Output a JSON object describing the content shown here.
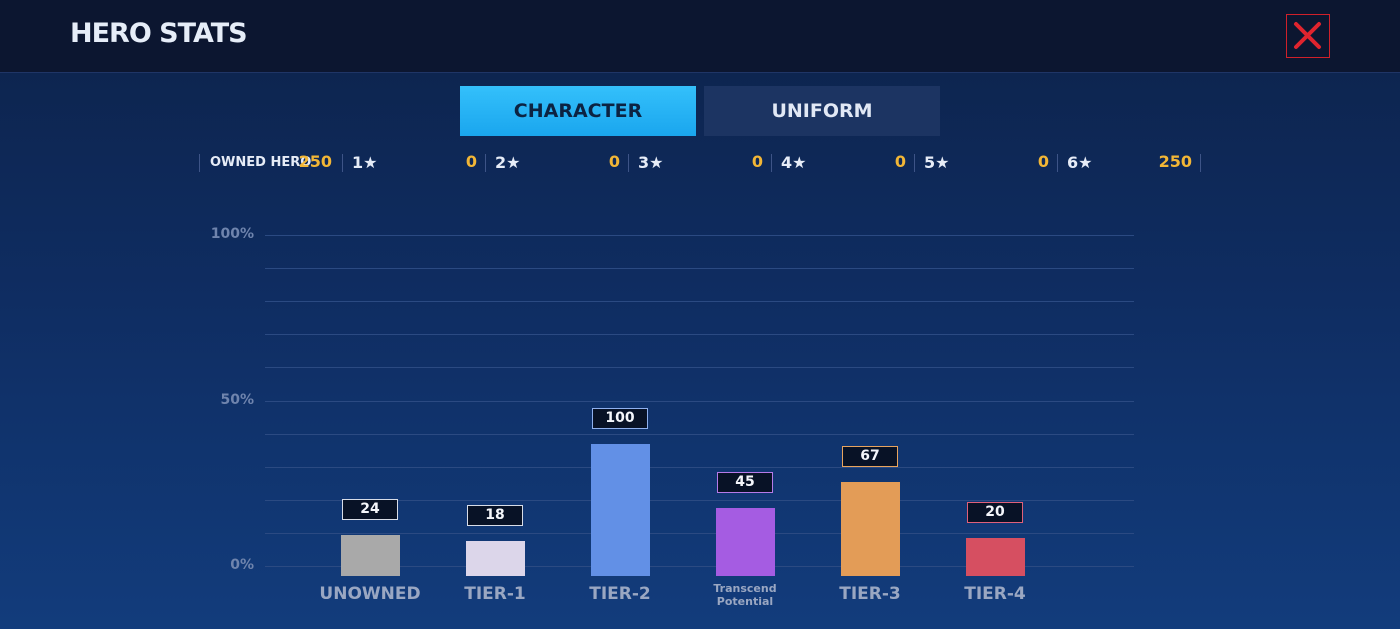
{
  "header": {
    "title": "HERO STATS"
  },
  "tabs": [
    "CHARACTER",
    "UNIFORM"
  ],
  "summary": {
    "label": "OWNED HERO",
    "value": 250,
    "stars": [
      {
        "label": "1★",
        "value": 0
      },
      {
        "label": "2★",
        "value": 0
      },
      {
        "label": "3★",
        "value": 0
      },
      {
        "label": "4★",
        "value": 0
      },
      {
        "label": "5★",
        "value": 0
      },
      {
        "label": "6★",
        "value": 250
      }
    ]
  },
  "chart_data": {
    "type": "bar",
    "categories": [
      "UNOWNED",
      "TIER-1",
      "TIER-2",
      "Transcend Potential",
      "TIER-3",
      "TIER-4"
    ],
    "values": [
      9.5,
      7.5,
      37,
      17.5,
      25.5,
      8.5
    ],
    "counts": [
      24,
      18,
      100,
      45,
      67,
      20
    ],
    "colors": [
      "#a9a9a9",
      "#dcd6ea",
      "#6290e6",
      "#a55ce2",
      "#e39c57",
      "#d64f61"
    ],
    "label_borders": [
      "#d8dde8",
      "#d8dde8",
      "#8fb0ee",
      "#b67ae8",
      "#e8a45e",
      "#e0607a"
    ],
    "ylim": [
      0,
      100
    ],
    "yticks": [
      {
        "value": 0,
        "label": "0%"
      },
      {
        "value": 50,
        "label": "50%"
      },
      {
        "value": 100,
        "label": "100%"
      }
    ],
    "ygrid": [
      10,
      20,
      30,
      40,
      60,
      70,
      80,
      90
    ]
  }
}
